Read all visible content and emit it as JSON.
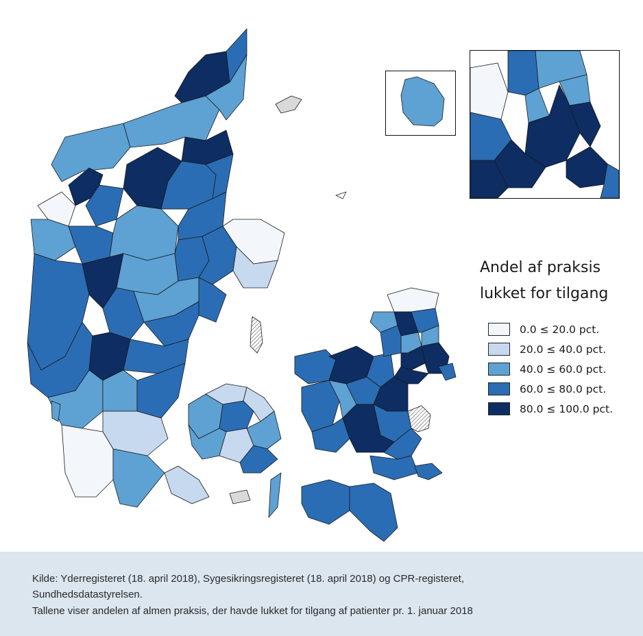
{
  "colors": {
    "c0_20": "#f3f6fb",
    "c20_40": "#c6d9ee",
    "c40_60": "#5ea1d3",
    "c60_80": "#2a6db4",
    "c80_100": "#0d2d63",
    "no_data": "#d9d9d9",
    "border": "#1a1a1a"
  },
  "legend": {
    "title_line1": "Andel af praksis",
    "title_line2": "lukket for tilgang",
    "items": [
      {
        "label": "0.0 ≤ 20.0 pct.",
        "color": "#f3f6fb"
      },
      {
        "label": "20.0 ≤ 40.0 pct.",
        "color": "#c6d9ee"
      },
      {
        "label": "40.0 ≤ 60.0 pct.",
        "color": "#5ea1d3"
      },
      {
        "label": "60.0 ≤ 80.0 pct.",
        "color": "#2a6db4"
      },
      {
        "label": "80.0 ≤ 100.0 pct.",
        "color": "#0d2d63"
      }
    ]
  },
  "footer": {
    "source_line1": "Kilde: Yderregisteret (18. april 2018), Sygesikringsregisteret (18. april 2018) og CPR-registeret,",
    "source_line2": "Sundhedsdatastyrelsen.",
    "note": "Tallene viser andelen af almen praksis, der havde lukket for tilgang af patienter pr. 1. januar 2018"
  }
}
